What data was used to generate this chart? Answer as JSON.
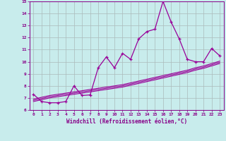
{
  "xlabel": "Windchill (Refroidissement éolien,°C)",
  "bg_color": "#c8ecec",
  "line_color": "#990099",
  "grid_color": "#aabbbb",
  "xlim": [
    -0.5,
    23.5
  ],
  "ylim": [
    6,
    15
  ],
  "yticks": [
    6,
    7,
    8,
    9,
    10,
    11,
    12,
    13,
    14,
    15
  ],
  "xticks": [
    0,
    1,
    2,
    3,
    4,
    5,
    6,
    7,
    8,
    9,
    10,
    11,
    12,
    13,
    14,
    15,
    16,
    17,
    18,
    19,
    20,
    21,
    22,
    23
  ],
  "x": [
    0,
    1,
    2,
    3,
    4,
    5,
    6,
    7,
    8,
    9,
    10,
    11,
    12,
    13,
    14,
    15,
    16,
    17,
    18,
    19,
    20,
    21,
    22,
    23
  ],
  "y_main": [
    7.3,
    6.7,
    6.6,
    6.6,
    6.7,
    8.0,
    7.2,
    7.25,
    9.5,
    10.4,
    9.5,
    10.7,
    10.2,
    11.9,
    12.5,
    12.7,
    15.0,
    13.3,
    11.9,
    10.2,
    10.0,
    10.0,
    11.1,
    10.5
  ],
  "y_trend1": [
    6.9,
    7.05,
    7.2,
    7.3,
    7.4,
    7.5,
    7.6,
    7.7,
    7.8,
    7.9,
    8.0,
    8.1,
    8.25,
    8.4,
    8.55,
    8.7,
    8.85,
    9.0,
    9.15,
    9.3,
    9.5,
    9.65,
    9.85,
    10.05
  ],
  "y_trend2": [
    6.8,
    6.95,
    7.1,
    7.2,
    7.3,
    7.4,
    7.5,
    7.6,
    7.7,
    7.8,
    7.9,
    8.0,
    8.15,
    8.3,
    8.45,
    8.6,
    8.75,
    8.9,
    9.05,
    9.2,
    9.4,
    9.55,
    9.75,
    9.95
  ],
  "y_trend3": [
    6.7,
    6.85,
    7.0,
    7.1,
    7.2,
    7.3,
    7.4,
    7.5,
    7.6,
    7.7,
    7.8,
    7.9,
    8.05,
    8.2,
    8.35,
    8.5,
    8.65,
    8.8,
    8.95,
    9.1,
    9.3,
    9.45,
    9.65,
    9.85
  ]
}
